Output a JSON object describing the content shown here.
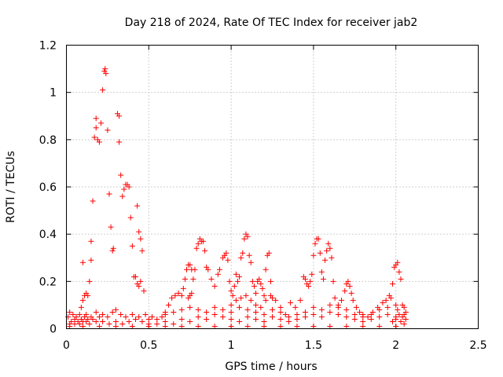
{
  "chart_data": {
    "type": "scatter",
    "title": "Day 218 of 2024, Rate Of TEC Index for receiver jab2",
    "xlabel": "GPS time / hours",
    "ylabel": "ROTI / TECUs",
    "xlim": [
      0,
      2.5
    ],
    "ylim": [
      0,
      1.2
    ],
    "xticks": [
      "0",
      "0.5",
      "1",
      "1.5",
      "2",
      "2.5"
    ],
    "yticks": [
      "0",
      "0.2",
      "0.4",
      "0.6",
      "0.8",
      "1",
      "1.2"
    ],
    "grid": true,
    "marker": "plus",
    "color": "#ff0000",
    "series": [
      {
        "points": [
          [
            0.01,
            0.05
          ],
          [
            0.02,
            0.07
          ],
          [
            0.03,
            0.03
          ],
          [
            0.04,
            0.06
          ],
          [
            0.05,
            0.04
          ],
          [
            0.06,
            0.05
          ],
          [
            0.07,
            0.03
          ],
          [
            0.08,
            0.06
          ],
          [
            0.09,
            0.04
          ],
          [
            0.1,
            0.03
          ],
          [
            0.02,
            0.02
          ],
          [
            0.05,
            0.02
          ],
          [
            0.08,
            0.02
          ],
          [
            0.11,
            0.05
          ],
          [
            0.12,
            0.03
          ],
          [
            0.13,
            0.04
          ],
          [
            0.14,
            0.02
          ],
          [
            0.16,
            0.04
          ],
          [
            0.18,
            0.03
          ],
          [
            0.2,
            0.05
          ],
          [
            0.09,
            0.09
          ],
          [
            0.1,
            0.12
          ],
          [
            0.11,
            0.14
          ],
          [
            0.12,
            0.15
          ],
          [
            0.13,
            0.14
          ],
          [
            0.14,
            0.2
          ],
          [
            0.15,
            0.29
          ],
          [
            0.15,
            0.37
          ],
          [
            0.16,
            0.54
          ],
          [
            0.17,
            0.81
          ],
          [
            0.18,
            0.89
          ],
          [
            0.18,
            0.85
          ],
          [
            0.19,
            0.8
          ],
          [
            0.2,
            0.79
          ],
          [
            0.21,
            0.87
          ],
          [
            0.22,
            1.01
          ],
          [
            0.23,
            1.09
          ],
          [
            0.235,
            1.1
          ],
          [
            0.24,
            1.08
          ],
          [
            0.25,
            0.84
          ],
          [
            0.26,
            0.57
          ],
          [
            0.27,
            0.43
          ],
          [
            0.28,
            0.33
          ],
          [
            0.285,
            0.34
          ],
          [
            0.31,
            0.91
          ],
          [
            0.32,
            0.9
          ],
          [
            0.32,
            0.79
          ],
          [
            0.33,
            0.65
          ],
          [
            0.34,
            0.56
          ],
          [
            0.35,
            0.59
          ],
          [
            0.36,
            0.61
          ],
          [
            0.37,
            0.61
          ],
          [
            0.38,
            0.6
          ],
          [
            0.39,
            0.47
          ],
          [
            0.4,
            0.35
          ],
          [
            0.41,
            0.22
          ],
          [
            0.42,
            0.22
          ],
          [
            0.43,
            0.52
          ],
          [
            0.44,
            0.41
          ],
          [
            0.45,
            0.38
          ],
          [
            0.46,
            0.33
          ],
          [
            0.43,
            0.19
          ],
          [
            0.44,
            0.18
          ],
          [
            0.45,
            0.2
          ],
          [
            0.47,
            0.16
          ],
          [
            0.1,
            0.28
          ],
          [
            0.12,
            0.06
          ],
          [
            0.15,
            0.05
          ],
          [
            0.18,
            0.07
          ],
          [
            0.22,
            0.06
          ],
          [
            0.25,
            0.05
          ],
          [
            0.28,
            0.07
          ],
          [
            0.3,
            0.08
          ],
          [
            0.33,
            0.06
          ],
          [
            0.36,
            0.05
          ],
          [
            0.4,
            0.06
          ],
          [
            0.44,
            0.05
          ],
          [
            0.48,
            0.06
          ],
          [
            0.5,
            0.04
          ],
          [
            0.52,
            0.05
          ],
          [
            0.22,
            0.03
          ],
          [
            0.26,
            0.02
          ],
          [
            0.3,
            0.03
          ],
          [
            0.34,
            0.02
          ],
          [
            0.38,
            0.03
          ],
          [
            0.42,
            0.04
          ],
          [
            0.46,
            0.03
          ],
          [
            0.5,
            0.02
          ],
          [
            0.55,
            0.04
          ],
          [
            0.58,
            0.05
          ],
          [
            0.6,
            0.07
          ],
          [
            0.62,
            0.1
          ],
          [
            0.64,
            0.13
          ],
          [
            0.66,
            0.14
          ],
          [
            0.68,
            0.15
          ],
          [
            0.7,
            0.14
          ],
          [
            0.71,
            0.17
          ],
          [
            0.72,
            0.21
          ],
          [
            0.73,
            0.25
          ],
          [
            0.74,
            0.27
          ],
          [
            0.75,
            0.27
          ],
          [
            0.76,
            0.25
          ],
          [
            0.74,
            0.13
          ],
          [
            0.75,
            0.14
          ],
          [
            0.76,
            0.15
          ],
          [
            0.77,
            0.21
          ],
          [
            0.78,
            0.25
          ],
          [
            0.79,
            0.34
          ],
          [
            0.8,
            0.36
          ],
          [
            0.81,
            0.38
          ],
          [
            0.82,
            0.37
          ],
          [
            0.83,
            0.37
          ],
          [
            0.84,
            0.33
          ],
          [
            0.85,
            0.26
          ],
          [
            0.86,
            0.25
          ],
          [
            0.88,
            0.21
          ],
          [
            0.9,
            0.18
          ],
          [
            0.92,
            0.23
          ],
          [
            0.93,
            0.25
          ],
          [
            0.95,
            0.3
          ],
          [
            0.96,
            0.31
          ],
          [
            0.97,
            0.32
          ],
          [
            0.98,
            0.29
          ],
          [
            0.99,
            0.2
          ],
          [
            1.0,
            0.16
          ],
          [
            1.01,
            0.14
          ],
          [
            1.02,
            0.18
          ],
          [
            1.03,
            0.23
          ],
          [
            1.04,
            0.2
          ],
          [
            1.05,
            0.22
          ],
          [
            1.06,
            0.3
          ],
          [
            1.07,
            0.32
          ],
          [
            1.08,
            0.38
          ],
          [
            1.09,
            0.4
          ],
          [
            1.1,
            0.39
          ],
          [
            1.11,
            0.31
          ],
          [
            1.12,
            0.28
          ],
          [
            1.13,
            0.2
          ],
          [
            1.14,
            0.18
          ],
          [
            1.15,
            0.15
          ],
          [
            1.16,
            0.2
          ],
          [
            1.17,
            0.21
          ],
          [
            1.18,
            0.19
          ],
          [
            1.19,
            0.17
          ],
          [
            1.2,
            0.14
          ],
          [
            1.21,
            0.25
          ],
          [
            1.22,
            0.31
          ],
          [
            1.23,
            0.32
          ],
          [
            1.24,
            0.2
          ],
          [
            1.25,
            0.13
          ],
          [
            1.0,
            0.1
          ],
          [
            1.03,
            0.12
          ],
          [
            1.06,
            0.13
          ],
          [
            1.09,
            0.14
          ],
          [
            1.12,
            0.12
          ],
          [
            1.15,
            0.1
          ],
          [
            1.18,
            0.09
          ],
          [
            1.21,
            0.12
          ],
          [
            1.24,
            0.14
          ],
          [
            1.27,
            0.12
          ],
          [
            1.3,
            0.09
          ],
          [
            1.33,
            0.06
          ],
          [
            1.36,
            0.11
          ],
          [
            1.39,
            0.09
          ],
          [
            1.42,
            0.12
          ],
          [
            1.44,
            0.22
          ],
          [
            1.45,
            0.21
          ],
          [
            1.46,
            0.19
          ],
          [
            1.47,
            0.18
          ],
          [
            1.48,
            0.2
          ],
          [
            1.49,
            0.23
          ],
          [
            1.5,
            0.31
          ],
          [
            1.51,
            0.36
          ],
          [
            1.52,
            0.38
          ],
          [
            1.53,
            0.38
          ],
          [
            1.54,
            0.32
          ],
          [
            1.55,
            0.24
          ],
          [
            1.56,
            0.21
          ],
          [
            1.57,
            0.29
          ],
          [
            1.58,
            0.33
          ],
          [
            1.59,
            0.36
          ],
          [
            1.6,
            0.34
          ],
          [
            1.61,
            0.3
          ],
          [
            1.62,
            0.2
          ],
          [
            1.63,
            0.13
          ],
          [
            1.65,
            0.1
          ],
          [
            1.67,
            0.12
          ],
          [
            1.69,
            0.16
          ],
          [
            1.7,
            0.19
          ],
          [
            1.71,
            0.2
          ],
          [
            1.72,
            0.18
          ],
          [
            1.73,
            0.15
          ],
          [
            1.74,
            0.12
          ],
          [
            1.76,
            0.09
          ],
          [
            1.78,
            0.07
          ],
          [
            1.8,
            0.06
          ],
          [
            1.83,
            0.05
          ],
          [
            1.86,
            0.07
          ],
          [
            1.89,
            0.09
          ],
          [
            1.92,
            0.11
          ],
          [
            1.94,
            0.12
          ],
          [
            1.96,
            0.14
          ],
          [
            1.97,
            0.13
          ],
          [
            1.98,
            0.19
          ],
          [
            1.99,
            0.26
          ],
          [
            2.0,
            0.27
          ],
          [
            2.01,
            0.28
          ],
          [
            2.02,
            0.24
          ],
          [
            2.03,
            0.21
          ],
          [
            2.04,
            0.1
          ],
          [
            2.05,
            0.09
          ],
          [
            2.06,
            0.07
          ],
          [
            2.06,
            0.04
          ],
          [
            2.05,
            0.02
          ],
          [
            2.04,
            0.05
          ],
          [
            2.03,
            0.03
          ],
          [
            2.02,
            0.06
          ],
          [
            2.01,
            0.08
          ],
          [
            2.0,
            0.04
          ],
          [
            1.98,
            0.03
          ],
          [
            0.55,
            0.02
          ],
          [
            0.6,
            0.03
          ],
          [
            0.65,
            0.02
          ],
          [
            0.7,
            0.04
          ],
          [
            0.75,
            0.03
          ],
          [
            0.8,
            0.05
          ],
          [
            0.85,
            0.04
          ],
          [
            0.9,
            0.06
          ],
          [
            0.95,
            0.05
          ],
          [
            1.0,
            0.04
          ],
          [
            1.05,
            0.03
          ],
          [
            1.1,
            0.05
          ],
          [
            1.15,
            0.04
          ],
          [
            1.2,
            0.03
          ],
          [
            1.25,
            0.05
          ],
          [
            1.3,
            0.04
          ],
          [
            1.35,
            0.03
          ],
          [
            1.4,
            0.04
          ],
          [
            1.45,
            0.05
          ],
          [
            1.5,
            0.06
          ],
          [
            1.55,
            0.05
          ],
          [
            1.6,
            0.07
          ],
          [
            1.65,
            0.06
          ],
          [
            1.7,
            0.05
          ],
          [
            1.75,
            0.04
          ],
          [
            1.8,
            0.03
          ],
          [
            1.85,
            0.04
          ],
          [
            1.9,
            0.05
          ],
          [
            1.95,
            0.06
          ],
          [
            2.0,
            0.05
          ],
          [
            0.6,
            0.06
          ],
          [
            0.65,
            0.07
          ],
          [
            0.7,
            0.08
          ],
          [
            0.75,
            0.09
          ],
          [
            0.8,
            0.08
          ],
          [
            0.85,
            0.07
          ],
          [
            0.9,
            0.09
          ],
          [
            0.95,
            0.08
          ],
          [
            1.0,
            0.07
          ],
          [
            1.05,
            0.09
          ],
          [
            1.1,
            0.08
          ],
          [
            1.15,
            0.07
          ],
          [
            1.2,
            0.06
          ],
          [
            1.25,
            0.08
          ],
          [
            1.3,
            0.07
          ],
          [
            1.35,
            0.05
          ],
          [
            1.4,
            0.06
          ],
          [
            1.45,
            0.07
          ],
          [
            1.5,
            0.09
          ],
          [
            1.55,
            0.08
          ],
          [
            1.6,
            0.1
          ],
          [
            1.65,
            0.09
          ],
          [
            1.7,
            0.08
          ],
          [
            1.75,
            0.06
          ],
          [
            1.8,
            0.05
          ],
          [
            1.85,
            0.06
          ],
          [
            1.9,
            0.08
          ],
          [
            1.95,
            0.09
          ],
          [
            2.0,
            0.1
          ],
          [
            2.05,
            0.06
          ],
          [
            0.02,
            0.01
          ],
          [
            0.1,
            0.01
          ],
          [
            0.2,
            0.01
          ],
          [
            0.3,
            0.01
          ],
          [
            0.4,
            0.01
          ],
          [
            0.5,
            0.01
          ],
          [
            0.6,
            0.01
          ],
          [
            0.7,
            0.01
          ],
          [
            0.8,
            0.01
          ],
          [
            0.9,
            0.01
          ],
          [
            1.0,
            0.01
          ],
          [
            1.1,
            0.01
          ],
          [
            1.2,
            0.01
          ],
          [
            1.3,
            0.01
          ],
          [
            1.4,
            0.01
          ],
          [
            1.5,
            0.01
          ],
          [
            1.6,
            0.01
          ],
          [
            1.7,
            0.01
          ],
          [
            1.8,
            0.01
          ],
          [
            1.9,
            0.01
          ],
          [
            2.0,
            0.01
          ]
        ]
      }
    ]
  }
}
